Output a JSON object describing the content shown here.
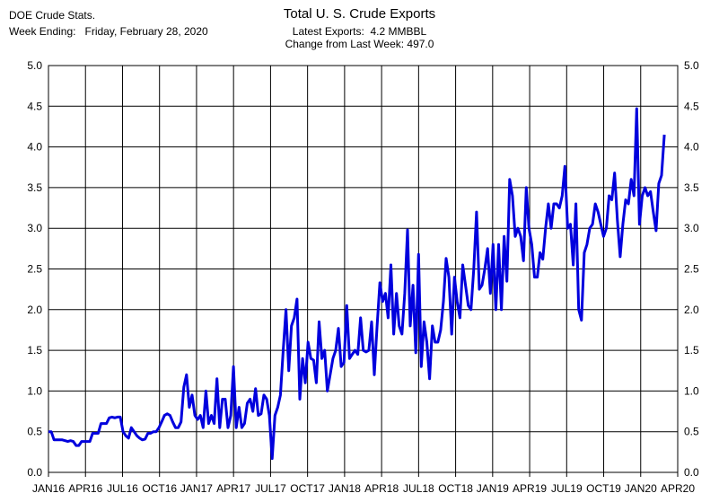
{
  "header": {
    "source": "DOE Crude Stats.",
    "week_label": "Week Ending:",
    "week_value": "Friday, February 28, 2020",
    "title": "Total U. S. Crude Exports",
    "latest": "Latest Exports:  4.2 MMBBL",
    "change": "Change from Last Week: 497.0"
  },
  "colors": {
    "series": "#0000dd",
    "grid": "#000000"
  },
  "chart_data": {
    "type": "line",
    "title": "Total U. S. Crude Exports",
    "xlabel": "",
    "ylabel": "",
    "ylim": [
      0,
      5
    ],
    "yticks": [
      "0.0",
      "0.5",
      "1.0",
      "1.5",
      "2.0",
      "2.5",
      "3.0",
      "3.5",
      "4.0",
      "4.5",
      "5.0"
    ],
    "xticks": [
      "JAN16",
      "APR16",
      "JUL16",
      "OCT16",
      "JAN17",
      "APR17",
      "JUL17",
      "OCT17",
      "JAN18",
      "APR18",
      "JUL18",
      "OCT18",
      "JAN19",
      "APR19",
      "JUL19",
      "OCT19",
      "JAN20",
      "APR20"
    ],
    "grid": true,
    "dual_y_axis": true,
    "series": [
      {
        "values": [
          0.5,
          0.5,
          0.4,
          0.4,
          0.4,
          0.4,
          0.39,
          0.38,
          0.39,
          0.38,
          0.33,
          0.33,
          0.38,
          0.38,
          0.38,
          0.38,
          0.48,
          0.48,
          0.48,
          0.6,
          0.6,
          0.6,
          0.67,
          0.68,
          0.67,
          0.68,
          0.68,
          0.5,
          0.45,
          0.42,
          0.55,
          0.5,
          0.45,
          0.42,
          0.4,
          0.41,
          0.48,
          0.48,
          0.5,
          0.5,
          0.55,
          0.62,
          0.7,
          0.72,
          0.7,
          0.62,
          0.55,
          0.55,
          0.62,
          1.05,
          1.2,
          0.8,
          0.95,
          0.7,
          0.65,
          0.7,
          0.55,
          1.0,
          0.6,
          0.7,
          0.6,
          1.15,
          0.55,
          0.9,
          0.9,
          0.55,
          0.7,
          1.3,
          0.55,
          0.8,
          0.55,
          0.6,
          0.85,
          0.9,
          0.75,
          1.03,
          0.7,
          0.72,
          0.95,
          0.9,
          0.7,
          0.17,
          0.7,
          0.8,
          0.95,
          1.5,
          2.0,
          1.25,
          1.8,
          1.9,
          2.13,
          0.9,
          1.4,
          1.1,
          1.6,
          1.4,
          1.38,
          1.1,
          1.85,
          1.4,
          1.5,
          1.0,
          1.2,
          1.4,
          1.5,
          1.77,
          1.3,
          1.35,
          2.05,
          1.4,
          1.45,
          1.5,
          1.45,
          1.9,
          1.5,
          1.48,
          1.5,
          1.85,
          1.2,
          1.8,
          2.33,
          2.1,
          2.2,
          1.9,
          2.55,
          1.7,
          2.2,
          1.8,
          1.7,
          2.2,
          2.98,
          1.8,
          2.3,
          1.47,
          2.68,
          1.3,
          1.85,
          1.6,
          1.15,
          1.8,
          1.6,
          1.6,
          1.75,
          2.1,
          2.63,
          2.4,
          1.7,
          2.4,
          2.1,
          1.9,
          2.55,
          2.3,
          2.05,
          2.0,
          2.5,
          3.2,
          2.25,
          2.3,
          2.5,
          2.75,
          2.2,
          2.8,
          2.0,
          2.8,
          2.0,
          2.9,
          2.35,
          3.6,
          3.4,
          2.9,
          3.0,
          2.9,
          2.6,
          3.5,
          3.0,
          2.8,
          2.4,
          2.4,
          2.7,
          2.62,
          3.0,
          3.3,
          3.0,
          3.3,
          3.3,
          3.25,
          3.4,
          3.76,
          3.0,
          3.05,
          2.55,
          3.3,
          2.0,
          1.87,
          2.7,
          2.8,
          3.0,
          3.05,
          3.3,
          3.2,
          3.05,
          2.9,
          3.0,
          3.4,
          3.35,
          3.68,
          3.1,
          2.65,
          3.05,
          3.35,
          3.3,
          3.6,
          3.4,
          4.47,
          3.05,
          3.4,
          3.5,
          3.4,
          3.45,
          3.2,
          2.97,
          3.55,
          3.65,
          4.15
        ],
        "x_start": "2016-01-01",
        "x_end": "2020-02-28",
        "x_step": "weekly"
      }
    ]
  }
}
